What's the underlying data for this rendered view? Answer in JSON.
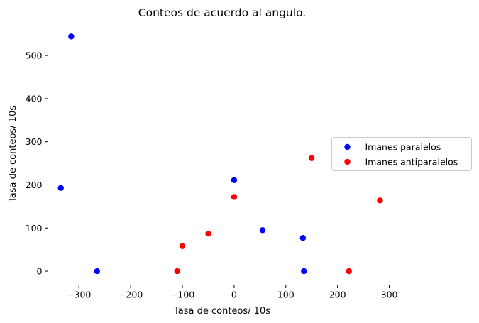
{
  "chart_data": {
    "type": "scatter",
    "title": "Conteos de acuerdo al angulo.",
    "xlabel": "Tasa de conteos/ 10s",
    "ylabel": "Tasa de conteos/ 10s",
    "xlim": [
      -360,
      315
    ],
    "ylim": [
      -32,
      575
    ],
    "xticks": [
      -300,
      -200,
      -100,
      0,
      100,
      200,
      300
    ],
    "yticks": [
      0,
      100,
      200,
      300,
      400,
      500
    ],
    "grid": false,
    "legend_position": "right",
    "series": [
      {
        "name": "Imanes paralelos",
        "color": "#0000ff",
        "points": [
          {
            "x": -315,
            "y": 544
          },
          {
            "x": -335,
            "y": 193
          },
          {
            "x": -265,
            "y": 0
          },
          {
            "x": 0,
            "y": 211
          },
          {
            "x": 55,
            "y": 95
          },
          {
            "x": 133,
            "y": 77
          },
          {
            "x": 135,
            "y": 0
          }
        ]
      },
      {
        "name": "Imanes antiparalelos",
        "color": "#ff0000",
        "points": [
          {
            "x": -110,
            "y": 0
          },
          {
            "x": -100,
            "y": 58
          },
          {
            "x": -50,
            "y": 87
          },
          {
            "x": 0,
            "y": 172
          },
          {
            "x": 150,
            "y": 262
          },
          {
            "x": 222,
            "y": 0
          },
          {
            "x": 282,
            "y": 164
          }
        ]
      }
    ]
  }
}
